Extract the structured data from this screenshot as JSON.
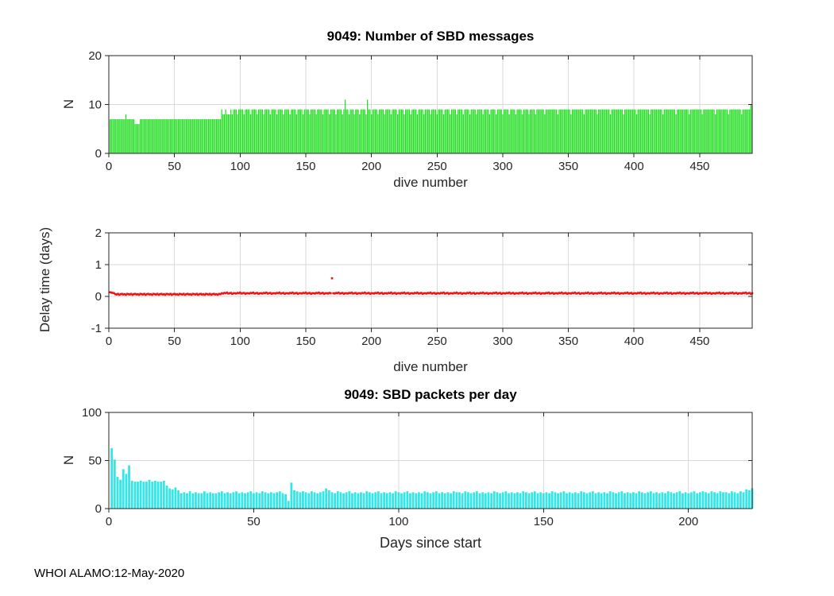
{
  "figure": {
    "footer": "WHOI ALAMO:12-May-2020",
    "colors": {
      "green": "#23DD23",
      "red": "#EE1414",
      "cyan": "#33E7E7",
      "axis": "#262626",
      "grid": "#D9D9D9",
      "background": "#FFFFFF"
    }
  },
  "chart_data": [
    {
      "type": "bar",
      "title": "9049: Number of SBD messages",
      "xlabel": "dive number",
      "ylabel": "N",
      "xlim": [
        0,
        490
      ],
      "ylim": [
        0,
        20
      ],
      "xticks": [
        0,
        50,
        100,
        150,
        200,
        250,
        300,
        350,
        400,
        450
      ],
      "yticks": [
        0,
        10,
        20
      ],
      "grid": true,
      "legend": "none",
      "color_key": "green",
      "values": [
        7,
        7,
        7,
        7,
        7,
        7,
        7,
        7,
        7,
        7,
        7,
        7,
        8,
        7,
        7,
        7,
        7,
        7,
        7,
        6,
        6,
        6,
        6,
        7,
        7,
        7,
        7,
        7,
        7,
        7,
        7,
        7,
        7,
        7,
        7,
        7,
        7,
        7,
        7,
        7,
        7,
        7,
        7,
        7,
        7,
        7,
        7,
        7,
        7,
        7,
        7,
        7,
        7,
        7,
        7,
        7,
        7,
        7,
        7,
        7,
        7,
        7,
        7,
        7,
        7,
        7,
        7,
        7,
        7,
        7,
        7,
        7,
        7,
        7,
        7,
        7,
        7,
        7,
        7,
        7,
        7,
        7,
        7,
        7,
        7,
        9,
        8,
        8,
        9,
        8,
        8,
        8,
        9,
        8,
        9,
        9,
        9,
        8,
        9,
        9,
        9,
        9,
        8,
        9,
        9,
        9,
        9,
        8,
        9,
        9,
        9,
        9,
        8,
        9,
        9,
        9,
        9,
        8,
        9,
        9,
        9,
        9,
        8,
        9,
        9,
        9,
        9,
        8,
        9,
        9,
        9,
        9,
        8,
        9,
        9,
        9,
        9,
        8,
        9,
        9,
        9,
        9,
        8,
        9,
        9,
        9,
        9,
        8,
        9,
        9,
        9,
        9,
        8,
        9,
        9,
        9,
        9,
        8,
        9,
        9,
        9,
        9,
        8,
        9,
        9,
        9,
        9,
        8,
        9,
        9,
        9,
        9,
        8,
        9,
        9,
        9,
        9,
        8,
        9,
        11,
        9,
        9,
        8,
        9,
        9,
        9,
        8,
        9,
        9,
        9,
        8,
        9,
        9,
        9,
        9,
        8,
        11,
        9,
        9,
        8,
        9,
        9,
        9,
        9,
        8,
        9,
        9,
        9,
        9,
        8,
        9,
        9,
        9,
        9,
        8,
        9,
        9,
        9,
        9,
        8,
        9,
        9,
        9,
        9,
        8,
        9,
        9,
        9,
        9,
        8,
        9,
        9,
        9,
        9,
        8,
        9,
        9,
        9,
        9,
        8,
        9,
        9,
        9,
        9,
        8,
        9,
        9,
        9,
        9,
        8,
        9,
        9,
        9,
        9,
        8,
        9,
        9,
        9,
        9,
        8,
        9,
        9,
        9,
        9,
        8,
        9,
        9,
        9,
        9,
        8,
        9,
        9,
        9,
        9,
        8,
        9,
        9,
        9,
        9,
        8,
        9,
        9,
        9,
        9,
        8,
        9,
        9,
        9,
        9,
        8,
        9,
        9,
        9,
        9,
        8,
        9,
        9,
        9,
        9,
        8,
        9,
        9,
        9,
        9,
        8,
        9,
        9,
        9,
        9,
        8,
        9,
        9,
        9,
        9,
        8,
        9,
        9,
        9,
        9,
        8,
        9,
        9,
        9,
        9,
        8,
        9,
        9,
        9,
        9,
        9,
        9,
        8,
        9,
        9,
        9,
        9,
        9,
        9,
        9,
        9,
        9,
        8,
        9,
        9,
        9,
        9,
        9,
        9,
        9,
        9,
        9,
        8,
        9,
        9,
        9,
        9,
        9,
        9,
        9,
        9,
        9,
        8,
        9,
        9,
        9,
        9,
        9,
        9,
        9,
        9,
        9,
        8,
        9,
        9,
        9,
        9,
        9,
        9,
        9,
        9,
        9,
        8,
        9,
        9,
        9,
        9,
        9,
        9,
        9,
        9,
        9,
        8,
        9,
        9,
        9,
        9,
        9,
        9,
        9,
        9,
        9,
        8,
        9,
        9,
        9,
        9,
        9,
        9,
        9,
        9,
        9,
        8,
        9,
        9,
        9,
        9,
        9,
        9,
        9,
        9,
        9,
        8,
        9,
        9,
        9,
        9,
        9,
        9,
        9,
        9,
        9,
        8,
        9,
        9,
        9,
        9,
        9,
        9,
        9,
        9,
        9,
        8,
        9,
        9,
        9,
        9,
        9,
        9,
        9,
        9,
        9,
        8,
        9,
        9,
        9,
        9,
        9,
        9,
        9,
        9,
        9,
        8,
        9,
        9,
        9,
        9,
        9,
        9,
        9,
        9,
        9,
        8,
        9,
        9,
        9,
        9,
        9,
        9,
        9,
        9,
        9,
        8,
        9,
        9,
        9,
        9,
        9,
        9,
        10,
        10
      ]
    },
    {
      "type": "scatter",
      "title": "",
      "xlabel": "dive number",
      "ylabel": "Delay time (days)",
      "xlim": [
        0,
        490
      ],
      "ylim": [
        -1,
        2
      ],
      "xticks": [
        0,
        50,
        100,
        150,
        200,
        250,
        300,
        350,
        400,
        450
      ],
      "yticks": [
        -1,
        0,
        1,
        2
      ],
      "grid": true,
      "legend": "none",
      "color_key": "red",
      "outlier": {
        "x": 170,
        "y": 0.57
      },
      "values": [
        0.13,
        0.12,
        0.11,
        0.1,
        0.07,
        0.06,
        0.08,
        0.05,
        0.07,
        0.08,
        0.06,
        0.07,
        0.05,
        0.08,
        0.07,
        0.06,
        0.08,
        0.05,
        0.07,
        0.08,
        0.06,
        0.07,
        0.05,
        0.08,
        0.07,
        0.06,
        0.08,
        0.05,
        0.07,
        0.08,
        0.06,
        0.07,
        0.05,
        0.08,
        0.07,
        0.06,
        0.08,
        0.05,
        0.07,
        0.08,
        0.06,
        0.07,
        0.05,
        0.08,
        0.07,
        0.06,
        0.08,
        0.05,
        0.07,
        0.08,
        0.06,
        0.07,
        0.05,
        0.08,
        0.07,
        0.06,
        0.08,
        0.05,
        0.07,
        0.08,
        0.06,
        0.07,
        0.05,
        0.08,
        0.07,
        0.06,
        0.08,
        0.05,
        0.07,
        0.08,
        0.06,
        0.07,
        0.05,
        0.08,
        0.07,
        0.06,
        0.08,
        0.05,
        0.07,
        0.08,
        0.06,
        0.07,
        0.05,
        0.08,
        0.07,
        0.1,
        0.09,
        0.11,
        0.1,
        0.12,
        0.09,
        0.1,
        0.11,
        0.08,
        0.1,
        0.1,
        0.09,
        0.11,
        0.1,
        0.12,
        0.09,
        0.1,
        0.11,
        0.08,
        0.1,
        0.1,
        0.09,
        0.11,
        0.1,
        0.12,
        0.09,
        0.1,
        0.11,
        0.08,
        0.1,
        0.1,
        0.09,
        0.11,
        0.1,
        0.12,
        0.09,
        0.1,
        0.11,
        0.08,
        0.1,
        0.1,
        0.09,
        0.11,
        0.1,
        0.12,
        0.09,
        0.1,
        0.11,
        0.08,
        0.1,
        0.1,
        0.09,
        0.11,
        0.1,
        0.12,
        0.09,
        0.1,
        0.11,
        0.08,
        0.1,
        0.1,
        0.09,
        0.11,
        0.1,
        0.12,
        0.09,
        0.1,
        0.11,
        0.08,
        0.1,
        0.1,
        0.09,
        0.11,
        0.1,
        0.12,
        0.09,
        0.1,
        0.11,
        0.08,
        0.1,
        0.1,
        0.09,
        0.11,
        0.1,
        0.57,
        0.1,
        0.09,
        0.11,
        0.1,
        0.12,
        0.09,
        0.1,
        0.11,
        0.08,
        0.1,
        0.1,
        0.09,
        0.11,
        0.1,
        0.12,
        0.09,
        0.1,
        0.11,
        0.08,
        0.1,
        0.1,
        0.09,
        0.11,
        0.1,
        0.12,
        0.09,
        0.1,
        0.11,
        0.08,
        0.1,
        0.1,
        0.09,
        0.11,
        0.1,
        0.12,
        0.09,
        0.1,
        0.11,
        0.08,
        0.1,
        0.1,
        0.09,
        0.11,
        0.1,
        0.12,
        0.09,
        0.1,
        0.11,
        0.08,
        0.1,
        0.1,
        0.09,
        0.11,
        0.1,
        0.12,
        0.09,
        0.1,
        0.11,
        0.08,
        0.1,
        0.1,
        0.09,
        0.11,
        0.1,
        0.12,
        0.09,
        0.1,
        0.11,
        0.08,
        0.1,
        0.1,
        0.09,
        0.11,
        0.1,
        0.12,
        0.09,
        0.1,
        0.11,
        0.08,
        0.1,
        0.1,
        0.09,
        0.11,
        0.1,
        0.12,
        0.09,
        0.1,
        0.11,
        0.08,
        0.1,
        0.1,
        0.09,
        0.11,
        0.1,
        0.12,
        0.09,
        0.1,
        0.11,
        0.08,
        0.1,
        0.1,
        0.09,
        0.11,
        0.1,
        0.12,
        0.09,
        0.1,
        0.11,
        0.08,
        0.1,
        0.1,
        0.09,
        0.11,
        0.1,
        0.12,
        0.09,
        0.1,
        0.11,
        0.08,
        0.1,
        0.1,
        0.09,
        0.11,
        0.1,
        0.12,
        0.09,
        0.1,
        0.11,
        0.08,
        0.1,
        0.1,
        0.09,
        0.11,
        0.1,
        0.12,
        0.09,
        0.1,
        0.11,
        0.08,
        0.1,
        0.1,
        0.09,
        0.11,
        0.1,
        0.12,
        0.09,
        0.1,
        0.11,
        0.08,
        0.1,
        0.1,
        0.09,
        0.11,
        0.1,
        0.12,
        0.09,
        0.1,
        0.11,
        0.08,
        0.1,
        0.1,
        0.09,
        0.11,
        0.1,
        0.12,
        0.09,
        0.1,
        0.11,
        0.08,
        0.1,
        0.1,
        0.09,
        0.11,
        0.1,
        0.12,
        0.09,
        0.1,
        0.11,
        0.08,
        0.1,
        0.1,
        0.09,
        0.11,
        0.1,
        0.12,
        0.09,
        0.1,
        0.11,
        0.08,
        0.1,
        0.1,
        0.09,
        0.11,
        0.1,
        0.12,
        0.09,
        0.1,
        0.11,
        0.08,
        0.1,
        0.1,
        0.09,
        0.11,
        0.1,
        0.12,
        0.09,
        0.1,
        0.11,
        0.08,
        0.1,
        0.1,
        0.09,
        0.11,
        0.1,
        0.12,
        0.09,
        0.1,
        0.11,
        0.08,
        0.1,
        0.1,
        0.09,
        0.11,
        0.1,
        0.12,
        0.09,
        0.1,
        0.11,
        0.08,
        0.1,
        0.1,
        0.09,
        0.11,
        0.1,
        0.12,
        0.09,
        0.1,
        0.11,
        0.08,
        0.1,
        0.1,
        0.09,
        0.11,
        0.1,
        0.12,
        0.09,
        0.1,
        0.11,
        0.08,
        0.1,
        0.1,
        0.09,
        0.11,
        0.1,
        0.12,
        0.09,
        0.1,
        0.11,
        0.08,
        0.1,
        0.1,
        0.09,
        0.11,
        0.1,
        0.12,
        0.09,
        0.1,
        0.11,
        0.08,
        0.1,
        0.1,
        0.09,
        0.11,
        0.1,
        0.12,
        0.09,
        0.1,
        0.11,
        0.08,
        0.1,
        0.1,
        0.09,
        0.11,
        0.1,
        0.12,
        0.09,
        0.1,
        0.11,
        0.08,
        0.1,
        0.1,
        0.09,
        0.11,
        0.1,
        0.12,
        0.09,
        0.1,
        0.11,
        0.08,
        0.1,
        0.1,
        0.09,
        0.11,
        0.1,
        0.12,
        0.09,
        0.1,
        0.11,
        0.08,
        0.1,
        0.1,
        0.09,
        0.11,
        0.1,
        0.12,
        0.09,
        0.1,
        0.11,
        0.08,
        0.1
      ]
    },
    {
      "type": "bar",
      "title": "9049: SBD packets per day",
      "xlabel": "Days since start",
      "ylabel": "N",
      "xlim": [
        0,
        222
      ],
      "ylim": [
        0,
        100
      ],
      "xticks": [
        0,
        50,
        100,
        150,
        200
      ],
      "yticks": [
        0,
        50,
        100
      ],
      "grid": true,
      "legend": "none",
      "color_key": "cyan",
      "values": [
        63,
        51,
        33,
        30,
        41,
        36,
        45,
        29,
        28,
        28,
        29,
        28,
        28,
        30,
        28,
        29,
        28,
        28,
        29,
        24,
        21,
        20,
        22,
        19,
        16,
        17,
        16,
        18,
        16,
        17,
        16,
        16,
        18,
        16,
        17,
        16,
        16,
        17,
        18,
        16,
        17,
        16,
        17,
        18,
        16,
        17,
        16,
        17,
        18,
        16,
        17,
        16,
        18,
        17,
        16,
        17,
        16,
        17,
        18,
        16,
        15,
        8,
        27,
        19,
        18,
        17,
        18,
        17,
        16,
        18,
        17,
        16,
        17,
        18,
        21,
        19,
        17,
        16,
        18,
        17,
        16,
        17,
        18,
        16,
        17,
        16,
        17,
        16,
        18,
        17,
        16,
        17,
        18,
        16,
        17,
        16,
        17,
        16,
        18,
        17,
        16,
        17,
        18,
        16,
        17,
        16,
        17,
        16,
        18,
        17,
        16,
        17,
        18,
        16,
        17,
        16,
        17,
        16,
        18,
        17,
        17,
        16,
        18,
        17,
        16,
        17,
        18,
        16,
        17,
        16,
        17,
        16,
        18,
        17,
        16,
        17,
        18,
        16,
        17,
        16,
        17,
        16,
        18,
        17,
        16,
        17,
        18,
        16,
        17,
        16,
        17,
        16,
        18,
        17,
        16,
        17,
        18,
        16,
        17,
        16,
        17,
        16,
        18,
        17,
        16,
        17,
        18,
        16,
        17,
        16,
        17,
        16,
        18,
        17,
        16,
        17,
        18,
        16,
        17,
        16,
        17,
        16,
        18,
        17,
        16,
        17,
        18,
        16,
        17,
        16,
        17,
        16,
        18,
        17,
        16,
        17,
        18,
        16,
        17,
        16,
        17,
        18,
        16,
        17,
        18,
        17,
        16,
        18,
        17,
        16,
        18,
        17,
        17,
        16,
        18,
        17,
        16,
        18,
        17,
        20,
        19,
        21
      ]
    }
  ]
}
